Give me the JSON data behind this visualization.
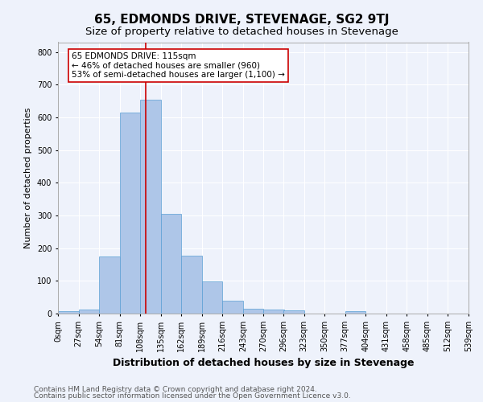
{
  "title": "65, EDMONDS DRIVE, STEVENAGE, SG2 9TJ",
  "subtitle": "Size of property relative to detached houses in Stevenage",
  "xlabel": "Distribution of detached houses by size in Stevenage",
  "ylabel": "Number of detached properties",
  "bin_edges": [
    0,
    27,
    54,
    81,
    108,
    135,
    162,
    189,
    216,
    243,
    270,
    296,
    323,
    350,
    377,
    404,
    431,
    458,
    485,
    512,
    539
  ],
  "bar_heights": [
    8,
    13,
    175,
    615,
    655,
    305,
    178,
    98,
    40,
    15,
    12,
    10,
    0,
    0,
    8,
    0,
    0,
    0,
    0,
    0
  ],
  "bar_color": "#aec6e8",
  "bar_edgecolor": "#5a9fd4",
  "property_size": 115,
  "vline_color": "#cc0000",
  "annotation_text": "65 EDMONDS DRIVE: 115sqm\n← 46% of detached houses are smaller (960)\n53% of semi-detached houses are larger (1,100) →",
  "annotation_box_color": "#ffffff",
  "annotation_box_edgecolor": "#cc0000",
  "ylim": [
    0,
    830
  ],
  "yticks": [
    0,
    100,
    200,
    300,
    400,
    500,
    600,
    700,
    800
  ],
  "footer_line1": "Contains HM Land Registry data © Crown copyright and database right 2024.",
  "footer_line2": "Contains public sector information licensed under the Open Government Licence v3.0.",
  "background_color": "#eef2fb",
  "grid_color": "#ffffff",
  "title_fontsize": 11,
  "subtitle_fontsize": 9.5,
  "axis_label_fontsize": 8,
  "tick_fontsize": 7,
  "annotation_fontsize": 7.5,
  "footer_fontsize": 6.5
}
